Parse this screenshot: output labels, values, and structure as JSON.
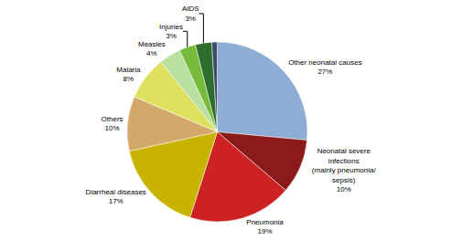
{
  "chart_data": {
    "type": "pie",
    "categories": [
      "Other neonatal causes",
      "Neonatal severe\ninfections\n(mainly pneumonia/\nsepsis)",
      "Pneumonia",
      "Diarrheal diseases",
      "Others",
      "Malaria",
      "Measles",
      "Injuries",
      "AIDS",
      null
    ],
    "values": [
      27,
      10,
      19,
      17,
      10,
      8,
      4,
      3,
      3,
      1
    ],
    "value_labels": [
      "27%",
      "10%",
      "19%",
      "17%",
      "10%",
      "8%",
      "4%",
      "3%",
      "3%",
      null
    ],
    "colors": [
      "#8eadd4",
      "#8b1a1a",
      "#cc2222",
      "#c8b400",
      "#d4a76a",
      "#e0e060",
      "#b8e0a0",
      "#78bb3c",
      "#2d6e2d",
      "#3a4e6a"
    ]
  }
}
